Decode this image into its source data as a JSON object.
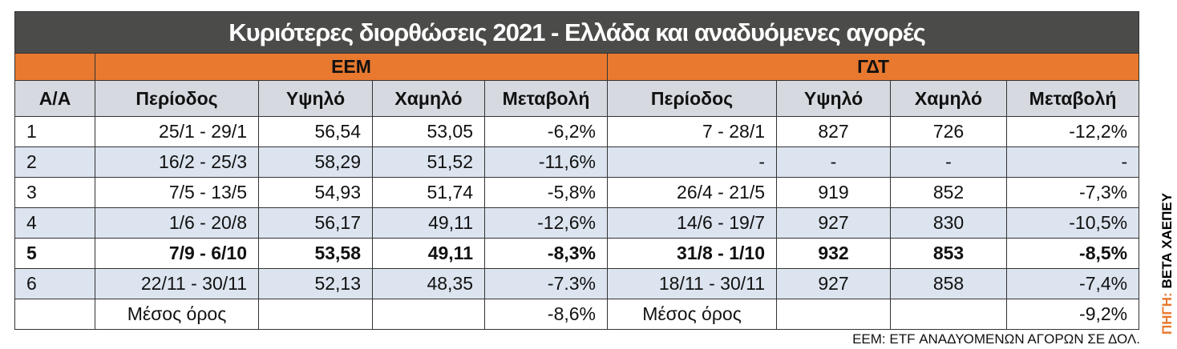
{
  "title": "Κυριότερες διορθώσεις 2021 - Ελλάδα και αναδυόμενες αγορές",
  "groups": [
    "ΕΕΜ",
    "ΓΔΤ"
  ],
  "headers": [
    "Α/Α",
    "Περίοδος",
    "Υψηλό",
    "Χαμηλό",
    "Μεταβολή",
    "Περίοδος",
    "Υψηλό",
    "Χαμηλό",
    "Μεταβολή"
  ],
  "rows": [
    [
      "1",
      "25/1 - 29/1",
      "56,54",
      "53,05",
      "-6,2%",
      "7 - 28/1",
      "827",
      "726",
      "-12,2%"
    ],
    [
      "2",
      "16/2 - 25/3",
      "58,29",
      "51,52",
      "-11,6%",
      "-",
      "-",
      "-",
      "-"
    ],
    [
      "3",
      "7/5 - 13/5",
      "54,93",
      "51,74",
      "-5,8%",
      "26/4 - 21/5",
      "919",
      "852",
      "-7,3%"
    ],
    [
      "4",
      "1/6 - 20/8",
      "56,17",
      "49,11",
      "-12,6%",
      "14/6 - 19/7",
      "927",
      "830",
      "-10,5%"
    ],
    [
      "5",
      "7/9 - 6/10",
      "53,58",
      "49,11",
      "-8,3%",
      "31/8 - 1/10",
      "932",
      "853",
      "-8,5%"
    ],
    [
      "6",
      "22/11 - 30/11",
      "52,13",
      "48,35",
      "-7.3%",
      "18/11 - 30/11",
      "927",
      "858",
      "-7,4%"
    ]
  ],
  "average": {
    "eem_label": "Μέσος όρος",
    "eem_change": "-8,6%",
    "gdt_label": "Μέσος όρος",
    "gdt_change": "-9,2%"
  },
  "note": "ΕΕΜ: ETF ΑΝΑΔΥΟΜΕΝΩΝ ΑΓΟΡΩΝ ΣΕ ΔΟΛ.",
  "source": {
    "label": "ΠΗΓΗ:",
    "name": "ΒΕΤΑ ΧΑΕΠΕΥ"
  }
}
